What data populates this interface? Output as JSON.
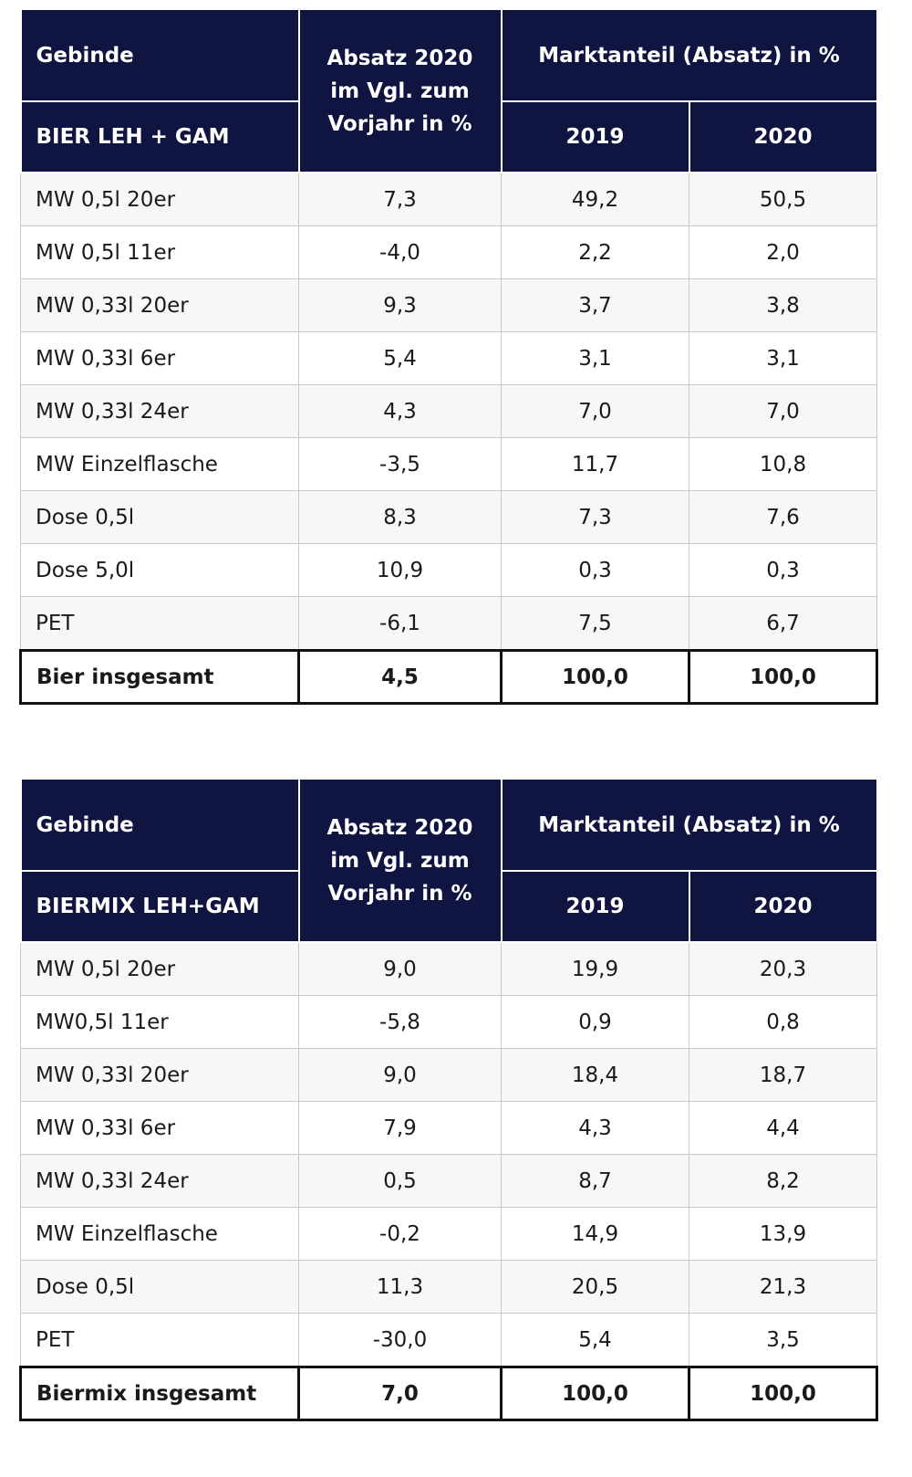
{
  "tables": [
    {
      "header": {
        "gebinde": "Gebinde",
        "category": "BIER LEH + GAM",
        "absatz_line1": "Absatz 2020",
        "absatz_line2": "im Vgl. zum",
        "absatz_line3": "Vorjahr in %",
        "marktanteil": "Marktanteil (Absatz) in %",
        "year1": "2019",
        "year2": "2020"
      },
      "rows": [
        {
          "label": "MW 0,5l 20er",
          "change": "7,3",
          "y2019": "49,2",
          "y2020": "50,5"
        },
        {
          "label": "MW 0,5l 11er",
          "change": "-4,0",
          "y2019": "2,2",
          "y2020": "2,0"
        },
        {
          "label": "MW 0,33l 20er",
          "change": "9,3",
          "y2019": "3,7",
          "y2020": "3,8"
        },
        {
          "label": "MW 0,33l 6er",
          "change": "5,4",
          "y2019": "3,1",
          "y2020": "3,1"
        },
        {
          "label": "MW 0,33l 24er",
          "change": "4,3",
          "y2019": "7,0",
          "y2020": "7,0"
        },
        {
          "label": "MW Einzelflasche",
          "change": "-3,5",
          "y2019": "11,7",
          "y2020": "10,8"
        },
        {
          "label": "Dose 0,5l",
          "change": "8,3",
          "y2019": "7,3",
          "y2020": "7,6"
        },
        {
          "label": "Dose 5,0l",
          "change": "10,9",
          "y2019": "0,3",
          "y2020": "0,3"
        },
        {
          "label": "PET",
          "change": "-6,1",
          "y2019": "7,5",
          "y2020": "6,7"
        }
      ],
      "total": {
        "label": "Bier insgesamt",
        "change": "4,5",
        "y2019": "100,0",
        "y2020": "100,0"
      }
    },
    {
      "header": {
        "gebinde": "Gebinde",
        "category": "BIERMIX  LEH+GAM",
        "absatz_line1": "Absatz 2020",
        "absatz_line2": "im Vgl. zum",
        "absatz_line3": "Vorjahr in %",
        "marktanteil": "Marktanteil (Absatz) in %",
        "year1": "2019",
        "year2": "2020"
      },
      "rows": [
        {
          "label": "MW 0,5l 20er",
          "change": "9,0",
          "y2019": "19,9",
          "y2020": "20,3"
        },
        {
          "label": "MW0,5l 11er",
          "change": "-5,8",
          "y2019": "0,9",
          "y2020": "0,8"
        },
        {
          "label": "MW 0,33l 20er",
          "change": "9,0",
          "y2019": "18,4",
          "y2020": "18,7"
        },
        {
          "label": "MW 0,33l 6er",
          "change": "7,9",
          "y2019": "4,3",
          "y2020": "4,4"
        },
        {
          "label": "MW 0,33l 24er",
          "change": "0,5",
          "y2019": "8,7",
          "y2020": "8,2"
        },
        {
          "label": "MW Einzelflasche",
          "change": "-0,2",
          "y2019": "14,9",
          "y2020": "13,9"
        },
        {
          "label": "Dose 0,5l",
          "change": "11,3",
          "y2019": "20,5",
          "y2020": "21,3"
        },
        {
          "label": "PET",
          "change": "-30,0",
          "y2019": "5,4",
          "y2020": "3,5"
        }
      ],
      "total": {
        "label": "Biermix insgesamt",
        "change": "7,0",
        "y2019": "100,0",
        "y2020": "100,0"
      }
    }
  ]
}
